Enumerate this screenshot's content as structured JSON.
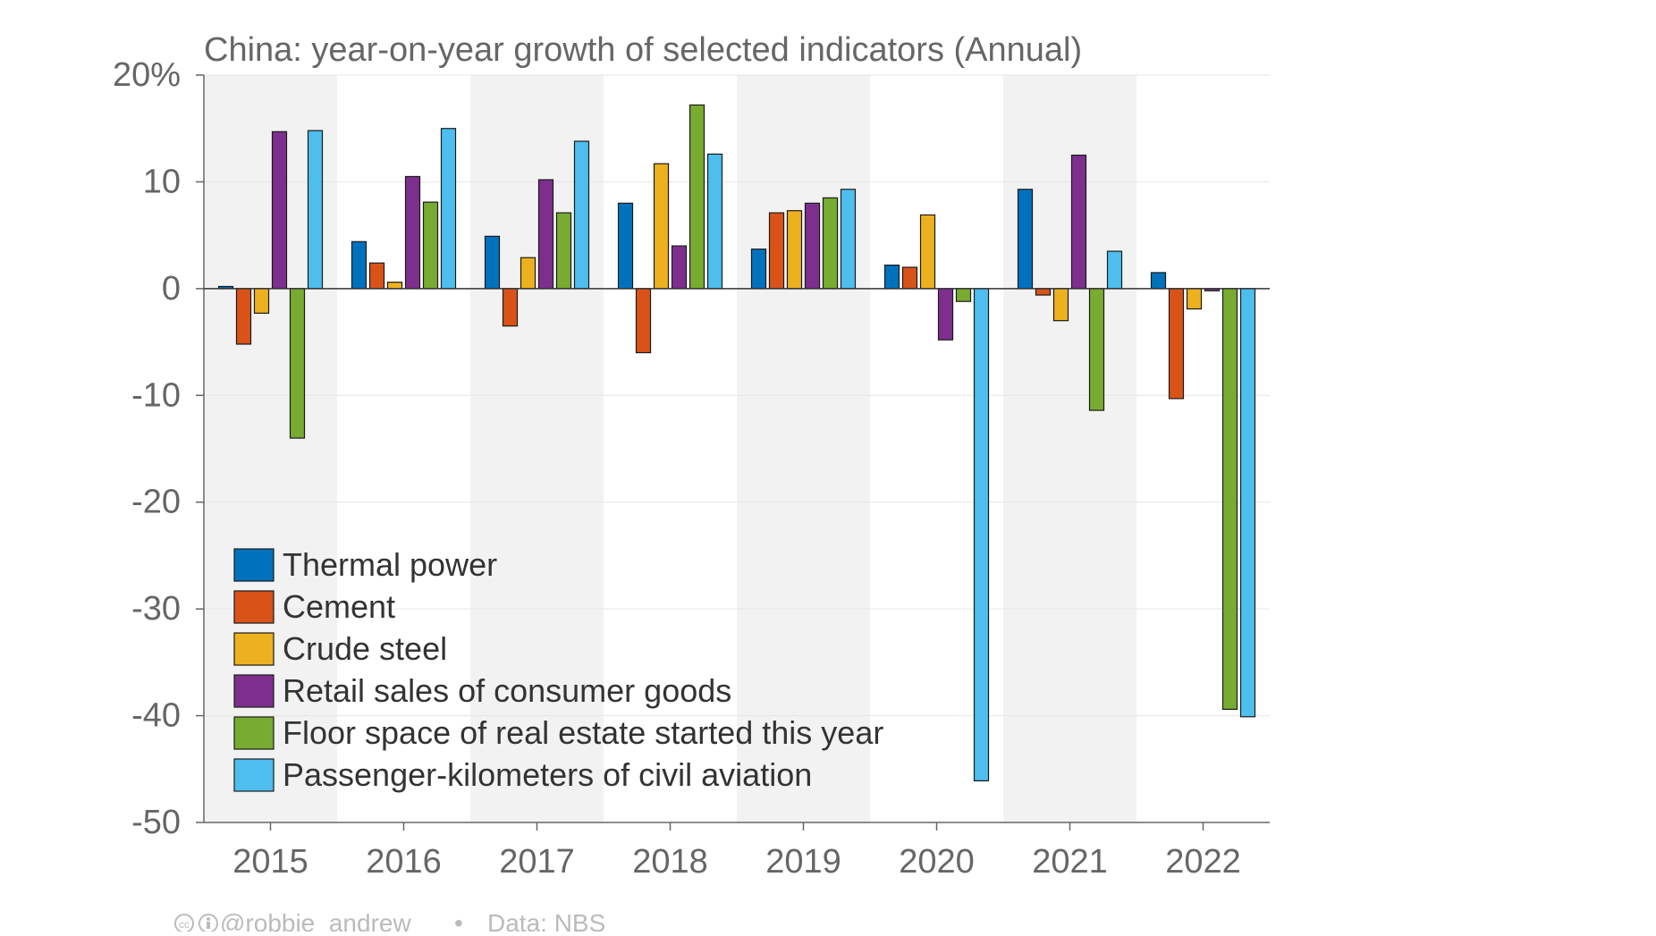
{
  "chart_data": {
    "type": "bar",
    "title": "China: year-on-year growth of selected indicators (Annual)",
    "xlabel": "",
    "ylabel": "",
    "categories": [
      "2015",
      "2016",
      "2017",
      "2018",
      "2019",
      "2020",
      "2021",
      "2022"
    ],
    "ylim": [
      -50,
      20
    ],
    "yticks": [
      20,
      10,
      0,
      -10,
      -20,
      -30,
      -40,
      -50
    ],
    "ytick_labels": [
      "20%",
      "10",
      "0",
      "-10",
      "-20",
      "-30",
      "-40",
      "-50"
    ],
    "grid": true,
    "alternating_shaded_columns": true,
    "legend_position": "bottom-left",
    "series": [
      {
        "name": "Thermal power",
        "color": "#0072BD",
        "values": [
          0.2,
          4.4,
          4.9,
          8.0,
          3.7,
          2.2,
          9.3,
          1.5
        ]
      },
      {
        "name": "Cement",
        "color": "#D95319",
        "values": [
          -5.2,
          2.4,
          -3.5,
          -6.0,
          7.1,
          2.0,
          -0.6,
          -10.3
        ]
      },
      {
        "name": "Crude steel",
        "color": "#EDB120",
        "values": [
          -2.3,
          0.6,
          2.9,
          11.7,
          7.3,
          6.9,
          -3.0,
          -1.9
        ]
      },
      {
        "name": "Retail sales of consumer goods",
        "color": "#7E2F8E",
        "values": [
          14.7,
          10.5,
          10.2,
          4.0,
          8.0,
          -4.8,
          12.5,
          -0.2
        ]
      },
      {
        "name": "Floor space of real estate started this year",
        "color": "#77AC30",
        "values": [
          -14.0,
          8.1,
          7.1,
          17.2,
          8.5,
          -1.2,
          -11.4,
          -39.4
        ]
      },
      {
        "name": "Passenger-kilometers of civil aviation",
        "color": "#4DBEEE",
        "values": [
          14.8,
          15.0,
          13.8,
          12.6,
          9.3,
          -46.1,
          3.5,
          -40.1
        ]
      }
    ]
  },
  "footer": {
    "author": "@robbie_andrew",
    "separator": "•",
    "source": "Data: NBS"
  },
  "colors": {
    "axis": "#666666",
    "grid": "#e6e6e6",
    "shade": "#f2f2f2",
    "footer_text": "#bbbbbb",
    "bar_stroke": "#1a1a1a"
  }
}
